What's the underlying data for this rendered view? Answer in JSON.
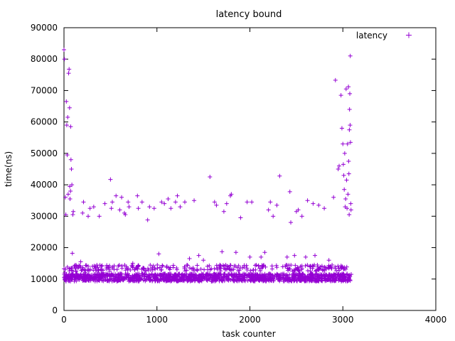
{
  "chart_data": {
    "type": "scatter",
    "title": "latency bound",
    "xlabel": "task counter",
    "ylabel": "time(ns)",
    "xlim": [
      0,
      4000
    ],
    "ylim": [
      0,
      90000
    ],
    "x_ticks": [
      0,
      1000,
      2000,
      3000,
      4000
    ],
    "y_ticks": [
      0,
      10000,
      20000,
      30000,
      40000,
      50000,
      60000,
      70000,
      80000,
      90000
    ],
    "x_tick_labels": [
      "0",
      "1000",
      "2000",
      "3000",
      "4000"
    ],
    "y_tick_labels": [
      "0",
      "10000",
      "20000",
      "30000",
      "40000",
      "50000",
      "60000",
      "70000",
      "80000",
      "90000"
    ],
    "grid": false,
    "legend_position": "top-right",
    "marker": "+",
    "color": "#9400d3",
    "series": [
      {
        "name": "latency",
        "points": [
          [
            0,
            83000
          ],
          [
            5,
            80000
          ],
          [
            10,
            12000
          ],
          [
            15,
            36000
          ],
          [
            20,
            30500
          ],
          [
            25,
            66500
          ],
          [
            30,
            59000
          ],
          [
            35,
            49500
          ],
          [
            40,
            61500
          ],
          [
            45,
            37000
          ],
          [
            50,
            75500
          ],
          [
            55,
            76800
          ],
          [
            60,
            64500
          ],
          [
            62,
            39500
          ],
          [
            65,
            35500
          ],
          [
            70,
            38000
          ],
          [
            72,
            58500
          ],
          [
            75,
            48000
          ],
          [
            80,
            45000
          ],
          [
            85,
            40000
          ],
          [
            90,
            18200
          ],
          [
            95,
            30500
          ],
          [
            100,
            31500
          ],
          [
            110,
            14000
          ],
          [
            130,
            12500
          ],
          [
            150,
            13500
          ],
          [
            180,
            15500
          ],
          [
            200,
            31000
          ],
          [
            210,
            34500
          ],
          [
            230,
            12000
          ],
          [
            260,
            30000
          ],
          [
            270,
            11000
          ],
          [
            280,
            32500
          ],
          [
            300,
            10000
          ],
          [
            320,
            33000
          ],
          [
            340,
            14000
          ],
          [
            380,
            30000
          ],
          [
            420,
            12000
          ],
          [
            440,
            34000
          ],
          [
            500,
            41700
          ],
          [
            510,
            32500
          ],
          [
            520,
            34500
          ],
          [
            560,
            36500
          ],
          [
            600,
            32000
          ],
          [
            620,
            36000
          ],
          [
            650,
            31000
          ],
          [
            660,
            30500
          ],
          [
            690,
            34500
          ],
          [
            700,
            33000
          ],
          [
            740,
            15000
          ],
          [
            790,
            36500
          ],
          [
            800,
            32500
          ],
          [
            840,
            34500
          ],
          [
            900,
            28800
          ],
          [
            920,
            33000
          ],
          [
            970,
            32500
          ],
          [
            1020,
            18000
          ],
          [
            1050,
            34500
          ],
          [
            1080,
            34000
          ],
          [
            1120,
            35500
          ],
          [
            1150,
            32500
          ],
          [
            1200,
            34500
          ],
          [
            1220,
            36500
          ],
          [
            1250,
            33000
          ],
          [
            1300,
            34500
          ],
          [
            1350,
            16500
          ],
          [
            1400,
            35000
          ],
          [
            1450,
            17500
          ],
          [
            1500,
            16000
          ],
          [
            1570,
            42500
          ],
          [
            1620,
            34500
          ],
          [
            1640,
            33500
          ],
          [
            1700,
            18700
          ],
          [
            1720,
            31500
          ],
          [
            1750,
            34000
          ],
          [
            1790,
            36500
          ],
          [
            1800,
            37000
          ],
          [
            1850,
            18500
          ],
          [
            1900,
            29500
          ],
          [
            1970,
            34500
          ],
          [
            2000,
            17000
          ],
          [
            2020,
            34500
          ],
          [
            2120,
            17000
          ],
          [
            2160,
            18500
          ],
          [
            2200,
            32000
          ],
          [
            2220,
            34500
          ],
          [
            2250,
            30000
          ],
          [
            2290,
            33500
          ],
          [
            2320,
            42800
          ],
          [
            2400,
            17000
          ],
          [
            2430,
            37800
          ],
          [
            2440,
            28000
          ],
          [
            2480,
            17500
          ],
          [
            2500,
            31500
          ],
          [
            2520,
            32000
          ],
          [
            2560,
            30000
          ],
          [
            2600,
            17000
          ],
          [
            2620,
            35000
          ],
          [
            2680,
            34000
          ],
          [
            2700,
            17500
          ],
          [
            2740,
            33500
          ],
          [
            2800,
            32500
          ],
          [
            2850,
            16000
          ],
          [
            2900,
            36000
          ],
          [
            2920,
            73300
          ],
          [
            2950,
            45000
          ],
          [
            2960,
            46000
          ],
          [
            2980,
            68500
          ],
          [
            2990,
            58000
          ],
          [
            3000,
            53000
          ],
          [
            3005,
            46500
          ],
          [
            3010,
            43000
          ],
          [
            3015,
            38500
          ],
          [
            3020,
            50000
          ],
          [
            3025,
            33000
          ],
          [
            3030,
            35500
          ],
          [
            3035,
            70500
          ],
          [
            3040,
            41500
          ],
          [
            3045,
            32500
          ],
          [
            3050,
            53000
          ],
          [
            3055,
            37000
          ],
          [
            3060,
            71200
          ],
          [
            3062,
            47500
          ],
          [
            3065,
            43500
          ],
          [
            3068,
            30500
          ],
          [
            3070,
            57500
          ],
          [
            3072,
            64000
          ],
          [
            3075,
            69000
          ],
          [
            3078,
            59000
          ],
          [
            3080,
            81000
          ],
          [
            3082,
            53500
          ],
          [
            3085,
            34000
          ],
          [
            3088,
            32000
          ],
          [
            3090,
            11500
          ]
        ]
      }
    ],
    "dense_band": {
      "description_in_data_units": "many points between x=0 and x=3080, y roughly 9000-15000",
      "x_start": 0,
      "x_end": 3080,
      "y_low": 9000,
      "y_high": 15000
    }
  }
}
